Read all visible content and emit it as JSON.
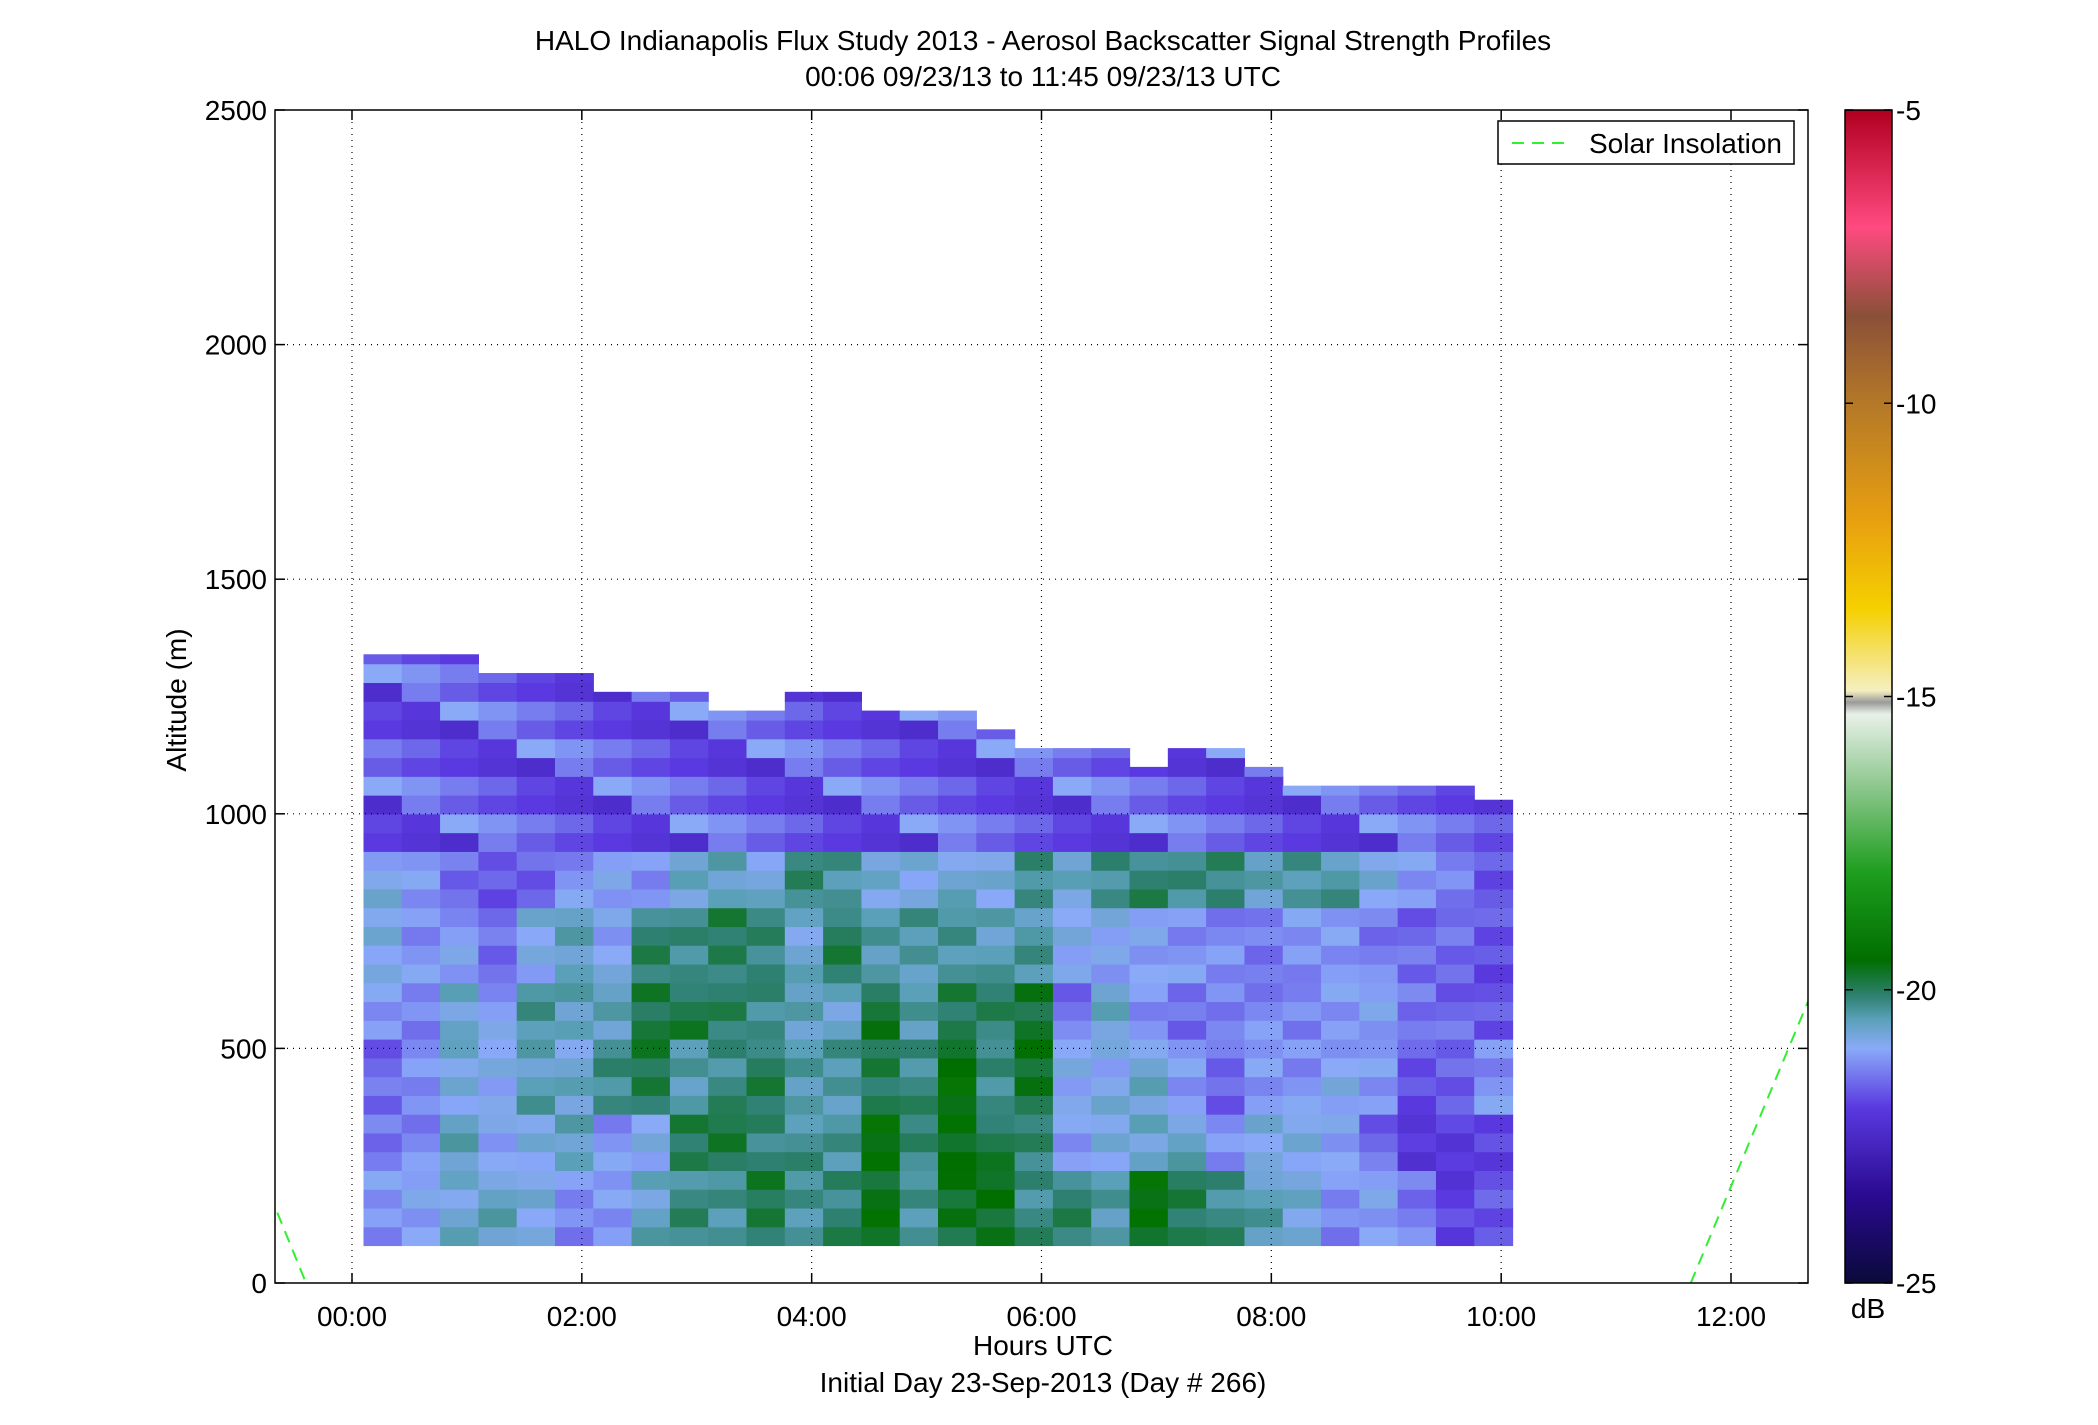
{
  "chart_data": {
    "type": "heatmap",
    "title": "HALO Indianapolis Flux Study 2013 - Aerosol Backscatter Signal Strength Profiles",
    "subtitle": "00:06 09/23/13 to 11:45 09/23/13  UTC",
    "xlabel": "Hours UTC",
    "xlabel2": "Initial Day 23-Sep-2013 (Day # 266)",
    "ylabel": "Altitude (m)",
    "xlim": [
      -0.67,
      12.67
    ],
    "ylim": [
      0,
      2500
    ],
    "x_ticks": [
      0,
      2,
      4,
      6,
      8,
      10,
      12
    ],
    "x_tick_labels": [
      "00:00",
      "02:00",
      "04:00",
      "06:00",
      "08:00",
      "10:00",
      "12:00"
    ],
    "y_ticks": [
      0,
      500,
      1000,
      1500,
      2000,
      2500
    ],
    "y_tick_labels": [
      "0",
      "500",
      "1000",
      "1500",
      "2000",
      "2500"
    ],
    "grid": true,
    "legend": {
      "position": "top-right",
      "entries": [
        {
          "label": "Solar Insolation",
          "style": "dashed",
          "color": "#33ee33"
        }
      ]
    },
    "solar_insolation": [
      {
        "x": [
          -0.65,
          -0.4
        ],
        "y": [
          150,
          0
        ]
      },
      {
        "x": [
          11.65,
          12.67
        ],
        "y": [
          0,
          600
        ]
      }
    ],
    "colorbar": {
      "label": "dB",
      "range": [
        -25,
        -5
      ],
      "ticks": [
        -5,
        -10,
        -15,
        -20,
        -25
      ],
      "tick_labels": [
        "-5",
        "-10",
        "-15",
        "-20",
        "-25"
      ],
      "stops": [
        {
          "v": -25,
          "c": "#0a0a3a"
        },
        {
          "v": -23.5,
          "c": "#2a0a90"
        },
        {
          "v": -22,
          "c": "#5a3ae0"
        },
        {
          "v": -21,
          "c": "#8aaaf8"
        },
        {
          "v": -20.5,
          "c": "#5aa0b8"
        },
        {
          "v": -20.1,
          "c": "#2e8070"
        },
        {
          "v": -19.5,
          "c": "#006e00"
        },
        {
          "v": -18,
          "c": "#1e9e1e"
        },
        {
          "v": -16.5,
          "c": "#90c890"
        },
        {
          "v": -15.3,
          "c": "#e8f0e8"
        },
        {
          "v": -15.1,
          "c": "#9a9a9a"
        },
        {
          "v": -14.9,
          "c": "#f5efc0"
        },
        {
          "v": -13.5,
          "c": "#f5d000"
        },
        {
          "v": -12,
          "c": "#e8a010"
        },
        {
          "v": -10,
          "c": "#b47828"
        },
        {
          "v": -8.5,
          "c": "#8a5038"
        },
        {
          "v": -7,
          "c": "#ff4a80"
        },
        {
          "v": -5,
          "c": "#b00020"
        }
      ]
    },
    "time_start": 0.1,
    "time_step": 0.3333,
    "altitude_base": 80,
    "altitude_step": 40,
    "profiles_db": [
      [
        -21.2,
        -21.0,
        -20.7,
        -20.6,
        -20.9,
        -21.3,
        -21.1,
        -20.6,
        -20.2,
        -20.4,
        -19.9,
        -20.3,
        -20.1,
        -19.6,
        -20.4,
        -19.7,
        -19.6,
        -20.2,
        -20.1,
        -20.5,
        -19.5,
        -19.9,
        -20.2,
        -20.5,
        -20.8,
        -21.3,
        -21.0,
        -21.4,
        -22.0,
        -21.8
      ],
      [
        -21.4,
        -21.3,
        -20.6,
        -21.1,
        -20.8,
        -20.5,
        -21.2,
        -21.0,
        -20.0,
        -19.8,
        -20.1,
        -20.3,
        -20.4,
        -19.5,
        -20.1,
        -19.5,
        -19.9,
        -20.2,
        -21.2,
        -20.8,
        -20.6,
        -20.6,
        -21.3,
        -20.9,
        -20.8,
        -21.0,
        -21.6,
        -22.2,
        -22.1,
        -21.9
      ],
      [
        -21.6,
        -21.3,
        -20.8,
        -20.9,
        -20.5,
        -20.7,
        -20.3,
        -19.9,
        -20.4,
        -20.2,
        -20.0,
        -20.5,
        -20.4,
        -19.9,
        -20.2,
        -19.5,
        -20.3,
        -19.7,
        -20.9,
        -20.9,
        -20.7,
        -21.2,
        -21.6,
        -21.1,
        -21.2,
        -21.0,
        -21.2,
        -21.8,
        -21.6,
        -21.2
      ],
      [
        -21.2,
        -21.3,
        -20.6,
        -21.1,
        -20.4,
        -20.6,
        -20.5,
        -19.8,
        -19.9,
        -20.1,
        -20.3,
        -20.5,
        -20.6,
        -19.8,
        -20.5,
        -20.0,
        -20.0,
        -19.7,
        -21.5,
        -20.7,
        -21.3,
        -21.5,
        -21.3,
        -21.3,
        -21.4,
        -21.2,
        -21.0,
        -21.4,
        -21.6,
        -21.8
      ],
      [
        -20.8,
        -21.2,
        -21.1,
        -21.6,
        -20.9,
        -20.5,
        -21.0,
        -20.1,
        -20.3,
        -20.0,
        -20.1,
        -20.7,
        -20.0,
        -20.5,
        -20.4,
        -20.3,
        -20.5,
        -20.4,
        -21.0,
        -21.0,
        -21.0,
        -21.2,
        -21.3,
        -21.5,
        -21.2,
        -21.1,
        -21.4,
        -21.6,
        -21.6,
        -21.8
      ],
      [
        -20.9,
        -21.2,
        -21.6,
        -21.7,
        -21.6,
        -21.2,
        -21.1,
        -21.3,
        -20.6,
        -20.5,
        -20.8,
        -20.2,
        -20.4,
        -20.7,
        -20.8,
        -20.7,
        -20.9,
        -20.3,
        -20.6,
        -20.2,
        -20.1,
        -20.3,
        -20.2,
        -20.5,
        -20.3,
        -20.4,
        -20.9,
        -21.2,
        -21.3,
        -21.7
      ],
      [
        -21.0,
        -21.2,
        -21.5,
        -21.8,
        -21.7,
        -21.6,
        -21.5,
        -21.4,
        -20.7,
        -20.9,
        -20.6,
        -20.6,
        -20.8,
        -20.5,
        -20.9,
        -21.2,
        -21.2,
        -20.8,
        -20.7,
        -20.6,
        -20.3,
        -20.3,
        -20.0,
        -19.7,
        -19.8,
        -20.1,
        -20.6,
        -21.0,
        -21.4,
        -21.3
      ],
      [
        -21.3,
        -21.4,
        -21.7,
        -21.9,
        -21.8,
        -21.8,
        -21.9,
        -22.0,
        -21.3,
        -21.4,
        -21.3,
        -21.1,
        -20.9,
        -21.0,
        -21.2,
        -21.1,
        -21.2,
        -21.4,
        -20.8,
        -20.6,
        -20.4,
        -20.3,
        -20.2,
        -20.1,
        -20.1,
        -20.2,
        -20.6,
        -21.0,
        -21.2,
        -21.0
      ],
      [
        -21.1,
        -21.4,
        -21.2,
        -21.4,
        -21.3,
        -21.5,
        -21.4,
        -21.6,
        -21.1,
        -21.2,
        -21.3,
        -21.1,
        -21.2,
        -21.2,
        -21.1,
        -21.3,
        -21.6,
        -21.5,
        -20.9,
        -20.7,
        -20.5,
        -20.6,
        -20.3,
        -20.2,
        -20.2,
        -20.4,
        -20.6,
        -20.9,
        -21.0,
        -21.2
      ]
    ],
    "upper_profile_db": [
      [
        -21.0,
        -21.2,
        -21.4,
        -21.6,
        -21.9,
        -22.1
      ],
      [
        -21.4,
        -21.7,
        -21.9,
        -22.0,
        -22.2,
        -22.4
      ]
    ],
    "top_altitude_m": [
      1340,
      1340,
      1340,
      1300,
      1300,
      1300,
      1260,
      1260,
      1260,
      1220,
      1220,
      1260,
      1260,
      1220,
      1220,
      1220,
      1180,
      1140,
      1140,
      1140,
      1100,
      1140,
      1140,
      1100,
      1060,
      1060,
      1060,
      1060,
      1060,
      1030
    ]
  }
}
